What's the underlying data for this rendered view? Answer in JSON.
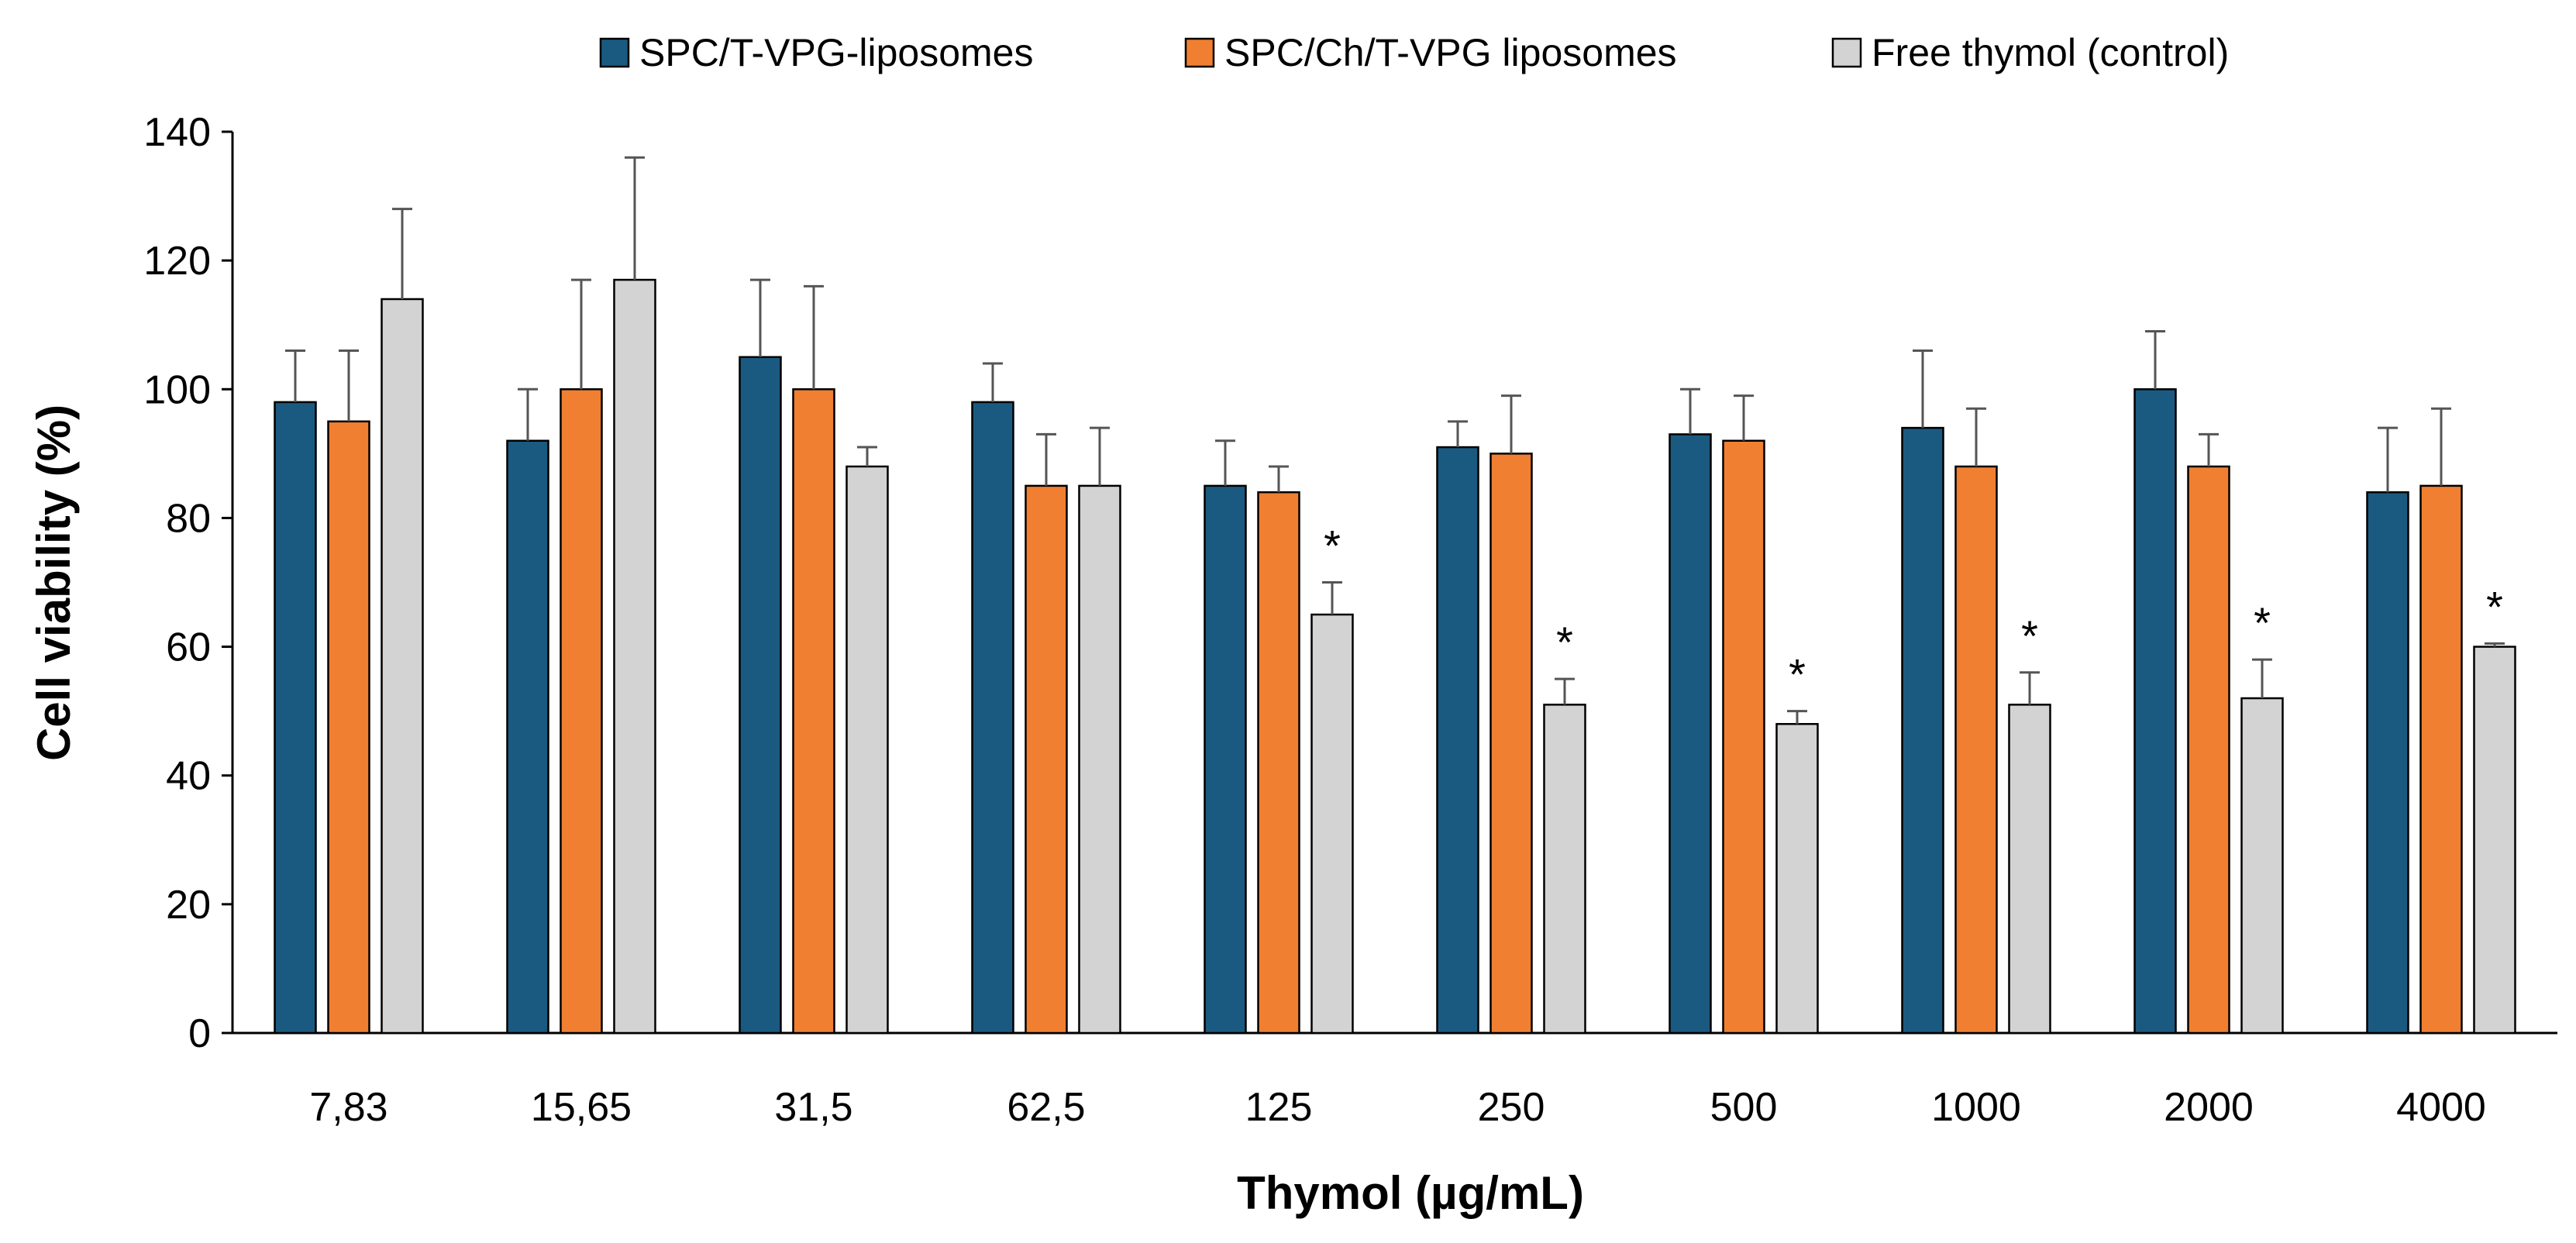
{
  "chart_data": {
    "type": "bar",
    "title": "",
    "xlabel": "Thymol (µg/mL)",
    "ylabel": "Cell viability (%)",
    "ylim": [
      0,
      140
    ],
    "yticks": [
      0,
      20,
      40,
      60,
      80,
      100,
      120,
      140
    ],
    "grid": false,
    "legend_position": "top",
    "categories": [
      "7,83",
      "15,65",
      "31,5",
      "62,5",
      "125",
      "250",
      "500",
      "1000",
      "2000",
      "4000"
    ],
    "series": [
      {
        "name": "SPC/T-VPG-liposomes",
        "color": "#1b5a80",
        "values": [
          98,
          92,
          105,
          98,
          85,
          91,
          93,
          94,
          100,
          84
        ],
        "errors": [
          8,
          8,
          12,
          6,
          7,
          4,
          7,
          12,
          9,
          10
        ]
      },
      {
        "name": "SPC/Ch/T-VPG liposomes",
        "color": "#f07f32",
        "values": [
          95,
          100,
          100,
          85,
          84,
          90,
          92,
          88,
          88,
          85
        ],
        "errors": [
          11,
          17,
          16,
          8,
          4,
          9,
          7,
          9,
          5,
          12
        ]
      },
      {
        "name": "Free thymol (control)",
        "color": "#d3d3d3",
        "values": [
          114,
          117,
          88,
          85,
          65,
          51,
          48,
          51,
          52,
          60
        ],
        "errors": [
          14,
          19,
          3,
          9,
          5,
          4,
          2,
          5,
          6,
          0.5
        ]
      }
    ],
    "significance": [
      {
        "category": "125",
        "series": "Free thymol (control)",
        "label": "*"
      },
      {
        "category": "250",
        "series": "Free thymol (control)",
        "label": "*"
      },
      {
        "category": "500",
        "series": "Free thymol (control)",
        "label": "*"
      },
      {
        "category": "1000",
        "series": "Free thymol (control)",
        "label": "*"
      },
      {
        "category": "2000",
        "series": "Free thymol (control)",
        "label": "*"
      },
      {
        "category": "4000",
        "series": "Free thymol (control)",
        "label": "*"
      }
    ]
  }
}
